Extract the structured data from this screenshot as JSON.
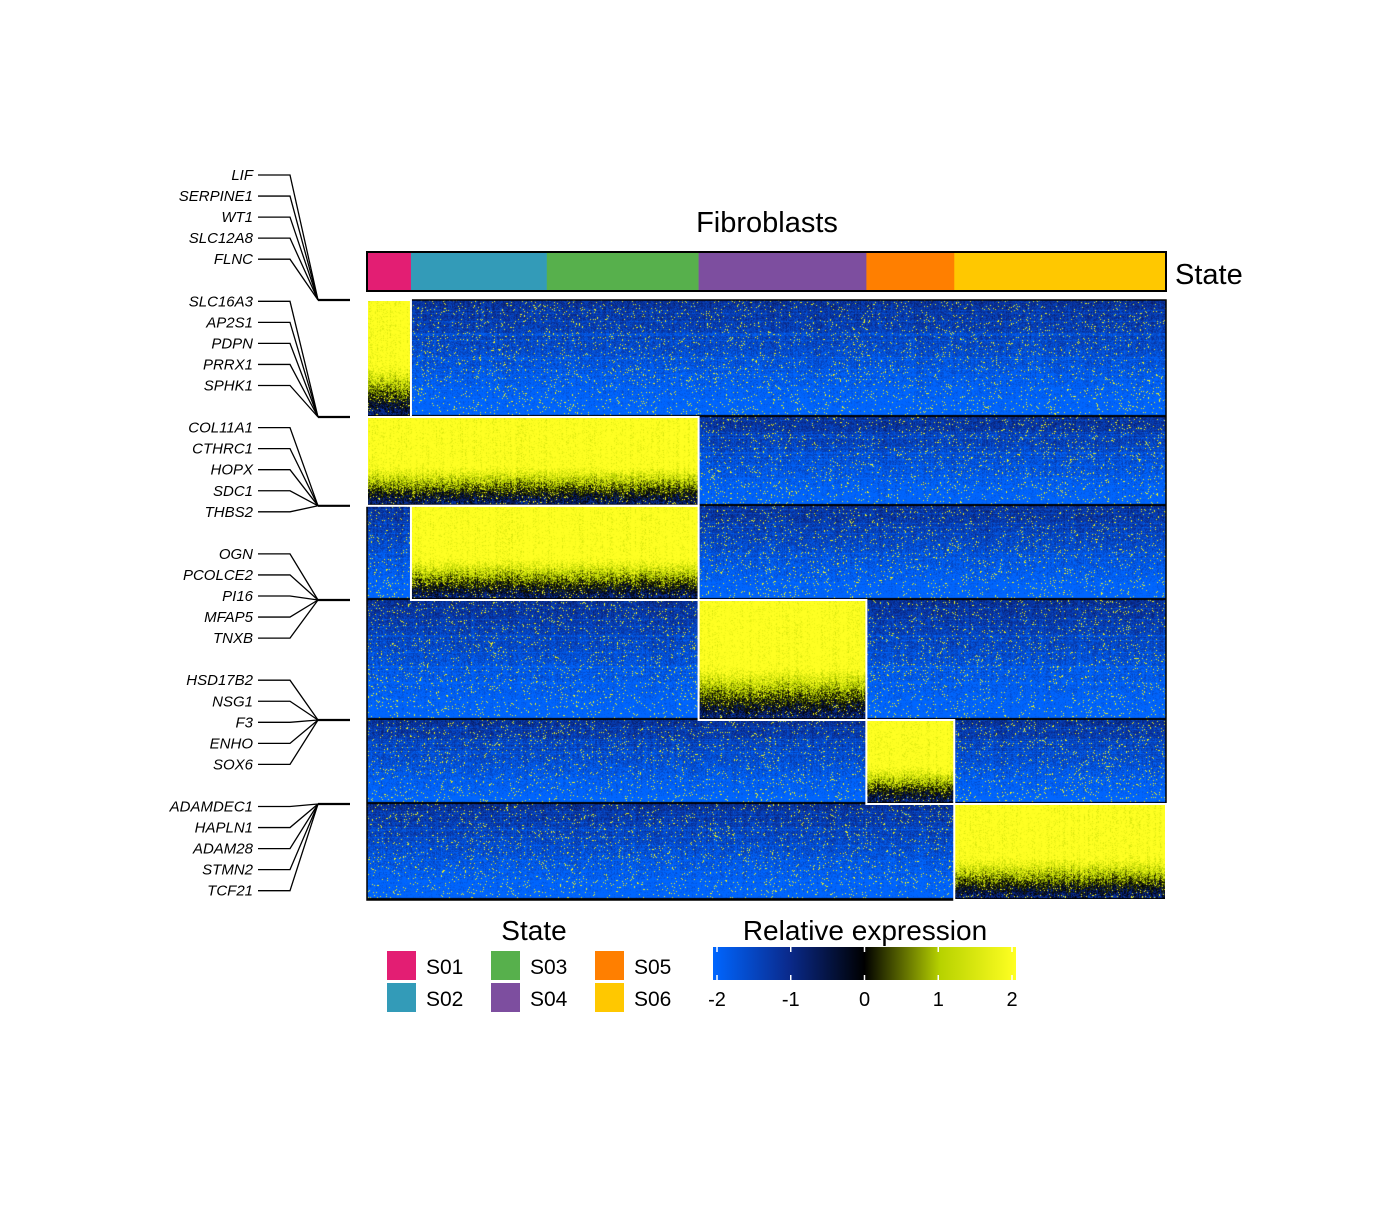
{
  "chart_data": {
    "type": "heatmap",
    "title": "Fibroblasts",
    "annotation_label": "State",
    "states": [
      {
        "name": "S01",
        "color": "#E31E73",
        "fraction": 0.055
      },
      {
        "name": "S02",
        "color": "#339BB8",
        "fraction": 0.17
      },
      {
        "name": "S03",
        "color": "#57B04C",
        "fraction": 0.19
      },
      {
        "name": "S04",
        "color": "#7D4E9F",
        "fraction": 0.21
      },
      {
        "name": "S05",
        "color": "#FF7F00",
        "fraction": 0.11
      },
      {
        "name": "S06",
        "color": "#FFC800",
        "fraction": 0.265
      }
    ],
    "gene_modules": [
      {
        "state": "S01",
        "genes": [
          "LIF",
          "SERPINE1",
          "WT1",
          "SLC12A8",
          "FLNC"
        ],
        "row_fraction": 0.195,
        "active_states": [
          "S01"
        ]
      },
      {
        "state": "S02",
        "genes": [
          "SLC16A3",
          "AP2S1",
          "PDPN",
          "PRRX1",
          "SPHK1"
        ],
        "row_fraction": 0.148,
        "active_states": [
          "S01",
          "S02",
          "S03"
        ]
      },
      {
        "state": "S03",
        "genes": [
          "COL11A1",
          "CTHRC1",
          "HOPX",
          "SDC1",
          "THBS2"
        ],
        "row_fraction": 0.157,
        "active_states": [
          "S02",
          "S03"
        ]
      },
      {
        "state": "S04",
        "genes": [
          "OGN",
          "PCOLCE2",
          "PI16",
          "MFAP5",
          "TNXB"
        ],
        "row_fraction": 0.2,
        "active_states": [
          "S04"
        ]
      },
      {
        "state": "S05",
        "genes": [
          "HSD17B2",
          "NSG1",
          "F3",
          "ENHO",
          "SOX6"
        ],
        "row_fraction": 0.14,
        "active_states": [
          "S05"
        ]
      },
      {
        "state": "S06",
        "genes": [
          "ADAMDEC1",
          "HAPLN1",
          "ADAM28",
          "STMN2",
          "TCF21"
        ],
        "row_fraction": 0.16,
        "active_states": [
          "S06"
        ]
      }
    ],
    "legend": {
      "state_title": "State",
      "expression_title": "Relative expression",
      "expression_range": [
        -2,
        2
      ],
      "expression_ticks": [
        "-2",
        "-1",
        "0",
        "1",
        "2"
      ],
      "colorscale": [
        "#0066FF",
        "#0A2A8C",
        "#000000",
        "#B7D200",
        "#FFFF22"
      ]
    }
  }
}
